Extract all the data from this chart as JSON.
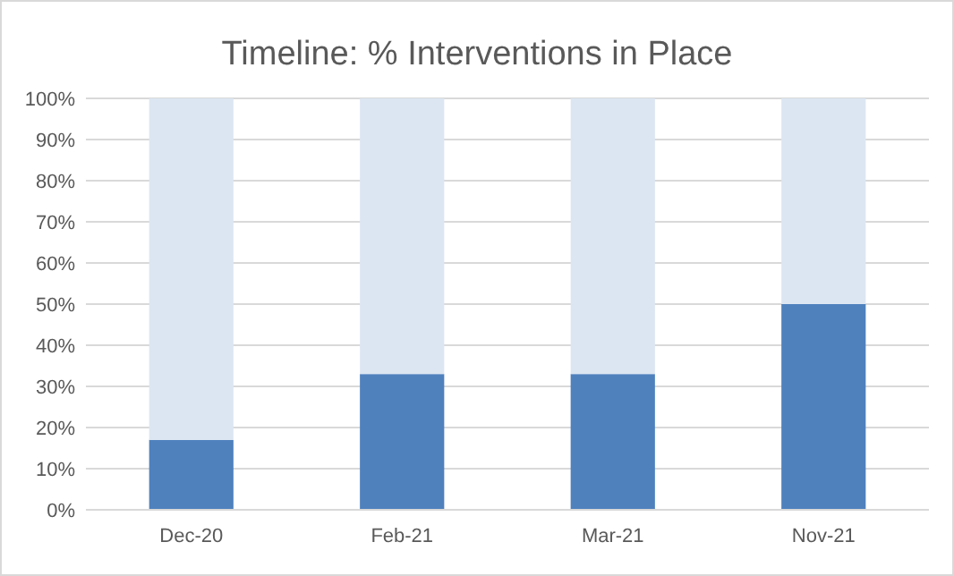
{
  "chart_data": {
    "type": "bar",
    "title": "Timeline: % Interventions in Place",
    "categories": [
      "Dec-20",
      "Feb-21",
      "Mar-21",
      "Nov-21"
    ],
    "stacked": true,
    "series": [
      {
        "color": "#4f81bd",
        "values": [
          17,
          33,
          33,
          50
        ]
      },
      {
        "color": "#dce6f2",
        "values": [
          83,
          67,
          67,
          50
        ]
      }
    ],
    "ylim": [
      0,
      100
    ],
    "yticks": [
      {
        "value": 0,
        "label": "0%"
      },
      {
        "value": 10,
        "label": "10%"
      },
      {
        "value": 20,
        "label": "20%"
      },
      {
        "value": 30,
        "label": "30%"
      },
      {
        "value": 40,
        "label": "40%"
      },
      {
        "value": 50,
        "label": "50%"
      },
      {
        "value": 60,
        "label": "60%"
      },
      {
        "value": 70,
        "label": "70%"
      },
      {
        "value": 80,
        "label": "80%"
      },
      {
        "value": 90,
        "label": "90%"
      },
      {
        "value": 100,
        "label": "100%"
      }
    ],
    "grid": "y"
  }
}
